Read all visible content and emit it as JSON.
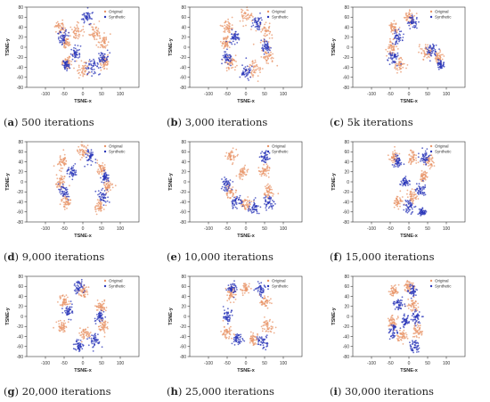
{
  "colors": {
    "original": "#e8956a",
    "synthetic": "#2a35b8",
    "axis": "#333333"
  },
  "chart_data": [
    {
      "type": "scatter",
      "caption_letter": "a",
      "caption_text": "500 iterations",
      "xlabel": "TSNE-x",
      "ylabel": "TSNE-y",
      "xlim": [
        -150,
        150
      ],
      "ylim": [
        -80,
        80
      ],
      "xticks": [
        -100,
        -50,
        0,
        50,
        100
      ],
      "yticks": [
        -80,
        -60,
        -40,
        -20,
        0,
        20,
        40,
        60,
        80
      ],
      "legend": "top-right",
      "grid": false,
      "series": [
        {
          "name": "Original",
          "color": "#e8956a",
          "clusters": [
            [
              -60,
              40,
              15
            ],
            [
              -20,
              30,
              20
            ],
            [
              30,
              30,
              18
            ],
            [
              55,
              10,
              15
            ],
            [
              60,
              -30,
              15
            ],
            [
              0,
              -45,
              20
            ],
            [
              -40,
              -30,
              15
            ],
            [
              -45,
              10,
              12
            ]
          ]
        },
        {
          "name": "Synthetic",
          "color": "#2a35b8",
          "clusters": [
            [
              -55,
              20,
              15
            ],
            [
              -20,
              -10,
              15
            ],
            [
              25,
              -40,
              18
            ],
            [
              55,
              -20,
              15
            ],
            [
              -45,
              -35,
              12
            ],
            [
              10,
              60,
              15
            ]
          ]
        }
      ]
    },
    {
      "type": "scatter",
      "caption_letter": "b",
      "caption_text": "3,000 iterations",
      "xlabel": "TSNE-x",
      "ylabel": "TSNE-y",
      "xlim": [
        -150,
        150
      ],
      "ylim": [
        -80,
        80
      ],
      "xticks": [
        -100,
        -50,
        0,
        50,
        100
      ],
      "yticks": [
        -80,
        -60,
        -40,
        -20,
        0,
        20,
        40,
        60,
        80
      ],
      "legend": "top-right",
      "grid": false,
      "series": [
        {
          "name": "Original",
          "color": "#e8956a",
          "clusters": [
            [
              -50,
              40,
              18
            ],
            [
              0,
              60,
              20
            ],
            [
              50,
              30,
              20
            ],
            [
              60,
              -20,
              18
            ],
            [
              20,
              -45,
              20
            ],
            [
              -40,
              -30,
              18
            ],
            [
              -55,
              10,
              12
            ]
          ]
        },
        {
          "name": "Synthetic",
          "color": "#2a35b8",
          "clusters": [
            [
              -30,
              20,
              15
            ],
            [
              30,
              50,
              15
            ],
            [
              55,
              0,
              15
            ],
            [
              0,
              -50,
              18
            ],
            [
              -50,
              -20,
              15
            ]
          ]
        }
      ]
    },
    {
      "type": "scatter",
      "caption_letter": "c",
      "caption_text": "5k iterations",
      "xlabel": "TSNE-x",
      "ylabel": "TSNE-y",
      "xlim": [
        -150,
        150
      ],
      "ylim": [
        -80,
        80
      ],
      "xticks": [
        -100,
        -50,
        0,
        50,
        100
      ],
      "yticks": [
        -80,
        -60,
        -40,
        -20,
        0,
        20,
        40,
        60,
        80
      ],
      "legend": "top-right",
      "grid": false,
      "series": [
        {
          "name": "Original",
          "color": "#e8956a",
          "clusters": [
            [
              -40,
              40,
              15
            ],
            [
              0,
              60,
              15
            ],
            [
              -45,
              0,
              15
            ],
            [
              -25,
              -35,
              15
            ],
            [
              45,
              -10,
              15
            ],
            [
              80,
              -20,
              12
            ]
          ]
        },
        {
          "name": "Synthetic",
          "color": "#2a35b8",
          "clusters": [
            [
              -30,
              20,
              15
            ],
            [
              10,
              50,
              15
            ],
            [
              -40,
              -20,
              15
            ],
            [
              60,
              -5,
              15
            ],
            [
              85,
              -35,
              10
            ]
          ]
        }
      ]
    },
    {
      "type": "scatter",
      "caption_letter": "d",
      "caption_text": "9,000 iterations",
      "xlabel": "TSNE-x",
      "ylabel": "TSNE-y",
      "xlim": [
        -150,
        150
      ],
      "ylim": [
        -80,
        80
      ],
      "xticks": [
        -100,
        -50,
        0,
        50,
        100
      ],
      "yticks": [
        -80,
        -60,
        -40,
        -20,
        0,
        20,
        40,
        60,
        80
      ],
      "legend": "top-right",
      "grid": false,
      "series": [
        {
          "name": "Original",
          "color": "#e8956a",
          "clusters": [
            [
              -55,
              40,
              18
            ],
            [
              0,
              60,
              15
            ],
            [
              50,
              30,
              15
            ],
            [
              65,
              -10,
              15
            ],
            [
              -45,
              -40,
              18
            ],
            [
              -60,
              0,
              15
            ],
            [
              45,
              -50,
              15
            ]
          ]
        },
        {
          "name": "Synthetic",
          "color": "#2a35b8",
          "clusters": [
            [
              -30,
              20,
              15
            ],
            [
              -50,
              -20,
              15
            ],
            [
              55,
              -30,
              15
            ],
            [
              20,
              50,
              15
            ],
            [
              60,
              10,
              12
            ]
          ]
        }
      ]
    },
    {
      "type": "scatter",
      "caption_letter": "e",
      "caption_text": "10,000 iterations",
      "xlabel": "TSNE-x",
      "ylabel": "TSNE-y",
      "xlim": [
        -150,
        150
      ],
      "ylim": [
        -80,
        80
      ],
      "xticks": [
        -100,
        -50,
        0,
        50,
        100
      ],
      "yticks": [
        -80,
        -60,
        -40,
        -20,
        0,
        20,
        40,
        60,
        80
      ],
      "legend": "top-right",
      "grid": false,
      "series": [
        {
          "name": "Original",
          "color": "#e8956a",
          "clusters": [
            [
              -40,
              50,
              15
            ],
            [
              -10,
              20,
              15
            ],
            [
              50,
              20,
              15
            ],
            [
              60,
              -20,
              15
            ],
            [
              0,
              -45,
              15
            ],
            [
              -40,
              -20,
              15
            ]
          ]
        },
        {
          "name": "Synthetic",
          "color": "#2a35b8",
          "clusters": [
            [
              -50,
              -5,
              15
            ],
            [
              -25,
              -40,
              15
            ],
            [
              60,
              -40,
              15
            ],
            [
              50,
              50,
              12
            ],
            [
              20,
              -50,
              15
            ]
          ]
        }
      ]
    },
    {
      "type": "scatter",
      "caption_letter": "f",
      "caption_text": "15,000 iterations",
      "xlabel": "TSNE-x",
      "ylabel": "TSNE-y",
      "xlim": [
        -150,
        150
      ],
      "ylim": [
        -80,
        80
      ],
      "xticks": [
        -100,
        -50,
        0,
        50,
        100
      ],
      "yticks": [
        -80,
        -60,
        -40,
        -20,
        0,
        20,
        40,
        60,
        80
      ],
      "legend": "top-right",
      "grid": false,
      "series": [
        {
          "name": "Original",
          "color": "#e8956a",
          "clusters": [
            [
              -40,
              50,
              15
            ],
            [
              10,
              50,
              15
            ],
            [
              55,
              40,
              15
            ],
            [
              -30,
              -40,
              12
            ],
            [
              10,
              -30,
              15
            ],
            [
              40,
              10,
              12
            ]
          ]
        },
        {
          "name": "Synthetic",
          "color": "#2a35b8",
          "clusters": [
            [
              -30,
              40,
              12
            ],
            [
              40,
              50,
              15
            ],
            [
              0,
              -50,
              15
            ],
            [
              30,
              -15,
              15
            ],
            [
              -10,
              0,
              12
            ],
            [
              35,
              -60,
              10
            ]
          ]
        }
      ]
    },
    {
      "type": "scatter",
      "caption_letter": "g",
      "caption_text": "20,000 iterations",
      "xlabel": "TSNE-x",
      "ylabel": "TSNE-y",
      "xlim": [
        -150,
        150
      ],
      "ylim": [
        -80,
        80
      ],
      "xticks": [
        -100,
        -50,
        0,
        50,
        100
      ],
      "yticks": [
        -80,
        -60,
        -40,
        -20,
        0,
        20,
        40,
        60,
        80
      ],
      "legend": "top-right",
      "grid": false,
      "series": [
        {
          "name": "Original",
          "color": "#e8956a",
          "clusters": [
            [
              -50,
              30,
              15
            ],
            [
              0,
              50,
              15
            ],
            [
              50,
              20,
              15
            ],
            [
              55,
              -20,
              15
            ],
            [
              -55,
              -20,
              15
            ],
            [
              5,
              -35,
              15
            ]
          ]
        },
        {
          "name": "Synthetic",
          "color": "#2a35b8",
          "clusters": [
            [
              -10,
              60,
              15
            ],
            [
              -40,
              10,
              12
            ],
            [
              30,
              -50,
              15
            ],
            [
              -10,
              -60,
              15
            ],
            [
              45,
              0,
              12
            ]
          ]
        }
      ]
    },
    {
      "type": "scatter",
      "caption_letter": "h",
      "caption_text": "25,000 iterations",
      "xlabel": "TSNE-x",
      "ylabel": "TSNE-y",
      "xlim": [
        -150,
        150
      ],
      "ylim": [
        -80,
        80
      ],
      "xticks": [
        -100,
        -50,
        0,
        50,
        100
      ],
      "yticks": [
        -80,
        -60,
        -40,
        -20,
        0,
        20,
        40,
        60,
        80
      ],
      "legend": "top-right",
      "grid": false,
      "series": [
        {
          "name": "Original",
          "color": "#e8956a",
          "clusters": [
            [
              -40,
              45,
              15
            ],
            [
              0,
              55,
              12
            ],
            [
              50,
              30,
              15
            ],
            [
              60,
              -20,
              15
            ],
            [
              -50,
              -30,
              15
            ],
            [
              20,
              -45,
              15
            ]
          ]
        },
        {
          "name": "Synthetic",
          "color": "#2a35b8",
          "clusters": [
            [
              -35,
              55,
              12
            ],
            [
              40,
              55,
              15
            ],
            [
              -50,
              0,
              15
            ],
            [
              -20,
              -45,
              15
            ],
            [
              45,
              -50,
              15
            ]
          ]
        }
      ]
    },
    {
      "type": "scatter",
      "caption_letter": "i",
      "caption_text": "30,000 iterations",
      "xlabel": "TSNE-x",
      "ylabel": "TSNE-y",
      "xlim": [
        -150,
        150
      ],
      "ylim": [
        -80,
        80
      ],
      "xticks": [
        -100,
        -50,
        0,
        50,
        100
      ],
      "yticks": [
        -80,
        -60,
        -40,
        -20,
        0,
        20,
        40,
        60,
        80
      ],
      "legend": "top-right",
      "grid": false,
      "series": [
        {
          "name": "Original",
          "color": "#e8956a",
          "clusters": [
            [
              -40,
              50,
              12
            ],
            [
              0,
              60,
              15
            ],
            [
              -45,
              -10,
              15
            ],
            [
              -20,
              -40,
              15
            ],
            [
              10,
              20,
              15
            ],
            [
              25,
              -30,
              15
            ]
          ]
        },
        {
          "name": "Synthetic",
          "color": "#2a35b8",
          "clusters": [
            [
              -25,
              25,
              15
            ],
            [
              10,
              50,
              12
            ],
            [
              -40,
              -30,
              15
            ],
            [
              15,
              -60,
              15
            ],
            [
              20,
              0,
              15
            ],
            [
              -10,
              -10,
              12
            ]
          ]
        }
      ]
    }
  ]
}
